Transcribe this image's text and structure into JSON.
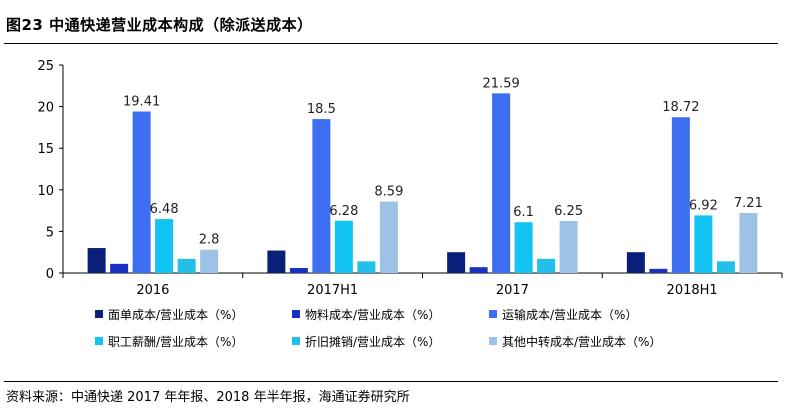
{
  "figure": {
    "title": "图23 中通快递营业成本构成（除派送成本）",
    "source": "资料来源：中通快递 2017 年年报、2018 年半年报，海通证券研究所"
  },
  "chart_data": {
    "type": "bar",
    "title": "",
    "xlabel": "",
    "ylabel": "",
    "ylim": [
      0,
      25
    ],
    "yticks": [
      "0",
      "5",
      "10",
      "15",
      "20",
      "25"
    ],
    "categories": [
      "2016",
      "2017H1",
      "2017",
      "2018H1"
    ],
    "grid": false,
    "legend_position": "bottom",
    "series": [
      {
        "name": "面单成本/营业成本（%）",
        "color": "#0a1f7a",
        "values": [
          3.0,
          2.7,
          2.5,
          2.5
        ]
      },
      {
        "name": "物料成本/营业成本（%）",
        "color": "#1a2fc4",
        "values": [
          1.1,
          0.6,
          0.7,
          0.5
        ]
      },
      {
        "name": "运输成本/营业成本（%）",
        "color": "#3d6ef2",
        "values": [
          19.41,
          18.5,
          21.59,
          18.72
        ]
      },
      {
        "name": "职工薪酬/营业成本（%）",
        "color": "#12c4f2",
        "values": [
          6.48,
          6.28,
          6.1,
          6.92
        ]
      },
      {
        "name": "折旧摊销/营业成本（%）",
        "color": "#22c0e8",
        "values": [
          1.7,
          1.4,
          1.7,
          1.4
        ]
      },
      {
        "name": "其他中转成本/营业成本（%）",
        "color": "#9ec2e6",
        "values": [
          2.8,
          8.59,
          6.25,
          7.21
        ]
      }
    ],
    "data_labels": {
      "运输成本/营业成本（%）": [
        "19.41",
        "18.5",
        "21.59",
        "18.72"
      ],
      "职工薪酬/营业成本（%）": [
        "6.48",
        "6.28",
        "6.1",
        "6.92"
      ],
      "其他中转成本/营业成本（%）": [
        "2.8",
        "8.59",
        "6.25",
        "7.21"
      ]
    }
  }
}
